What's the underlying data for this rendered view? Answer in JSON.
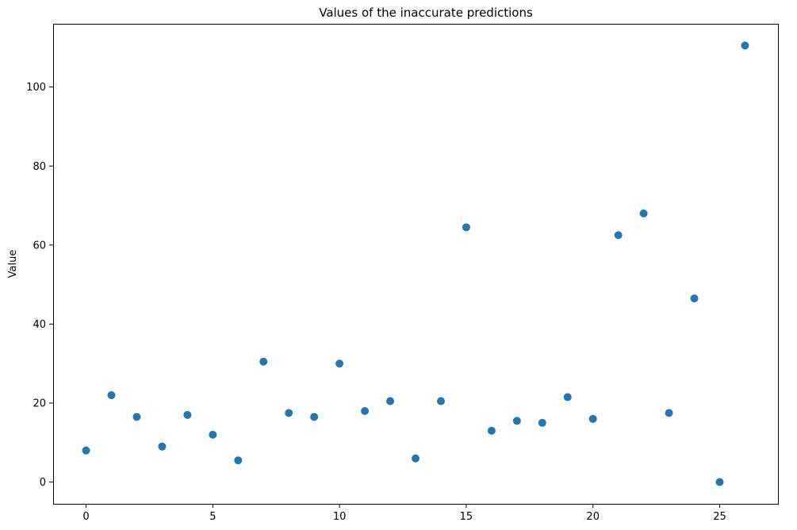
{
  "chart_data": {
    "type": "scatter",
    "title": "Values of the inaccurate predictions",
    "xlabel": "",
    "ylabel": "Value",
    "xlim": [
      -1.3,
      27.3
    ],
    "ylim": [
      -5.5,
      116
    ],
    "xticks": [
      0,
      5,
      10,
      15,
      20,
      25
    ],
    "yticks": [
      0,
      20,
      40,
      60,
      80,
      100
    ],
    "grid": false,
    "marker_color": "#1f77b4",
    "series": [
      {
        "x": [
          0,
          1,
          2,
          3,
          4,
          5,
          6,
          7,
          8,
          9,
          10,
          11,
          12,
          13,
          14,
          15,
          16,
          17,
          18,
          19,
          20,
          21,
          22,
          23,
          24,
          25,
          26
        ],
        "values": [
          8,
          22,
          16.5,
          9,
          17,
          12,
          5.5,
          30.5,
          17.5,
          16.5,
          30,
          18,
          20.5,
          6,
          20.5,
          64.5,
          13,
          15.5,
          15,
          21.5,
          16,
          62.5,
          68,
          17.5,
          46.5,
          0,
          110.5
        ]
      }
    ]
  }
}
